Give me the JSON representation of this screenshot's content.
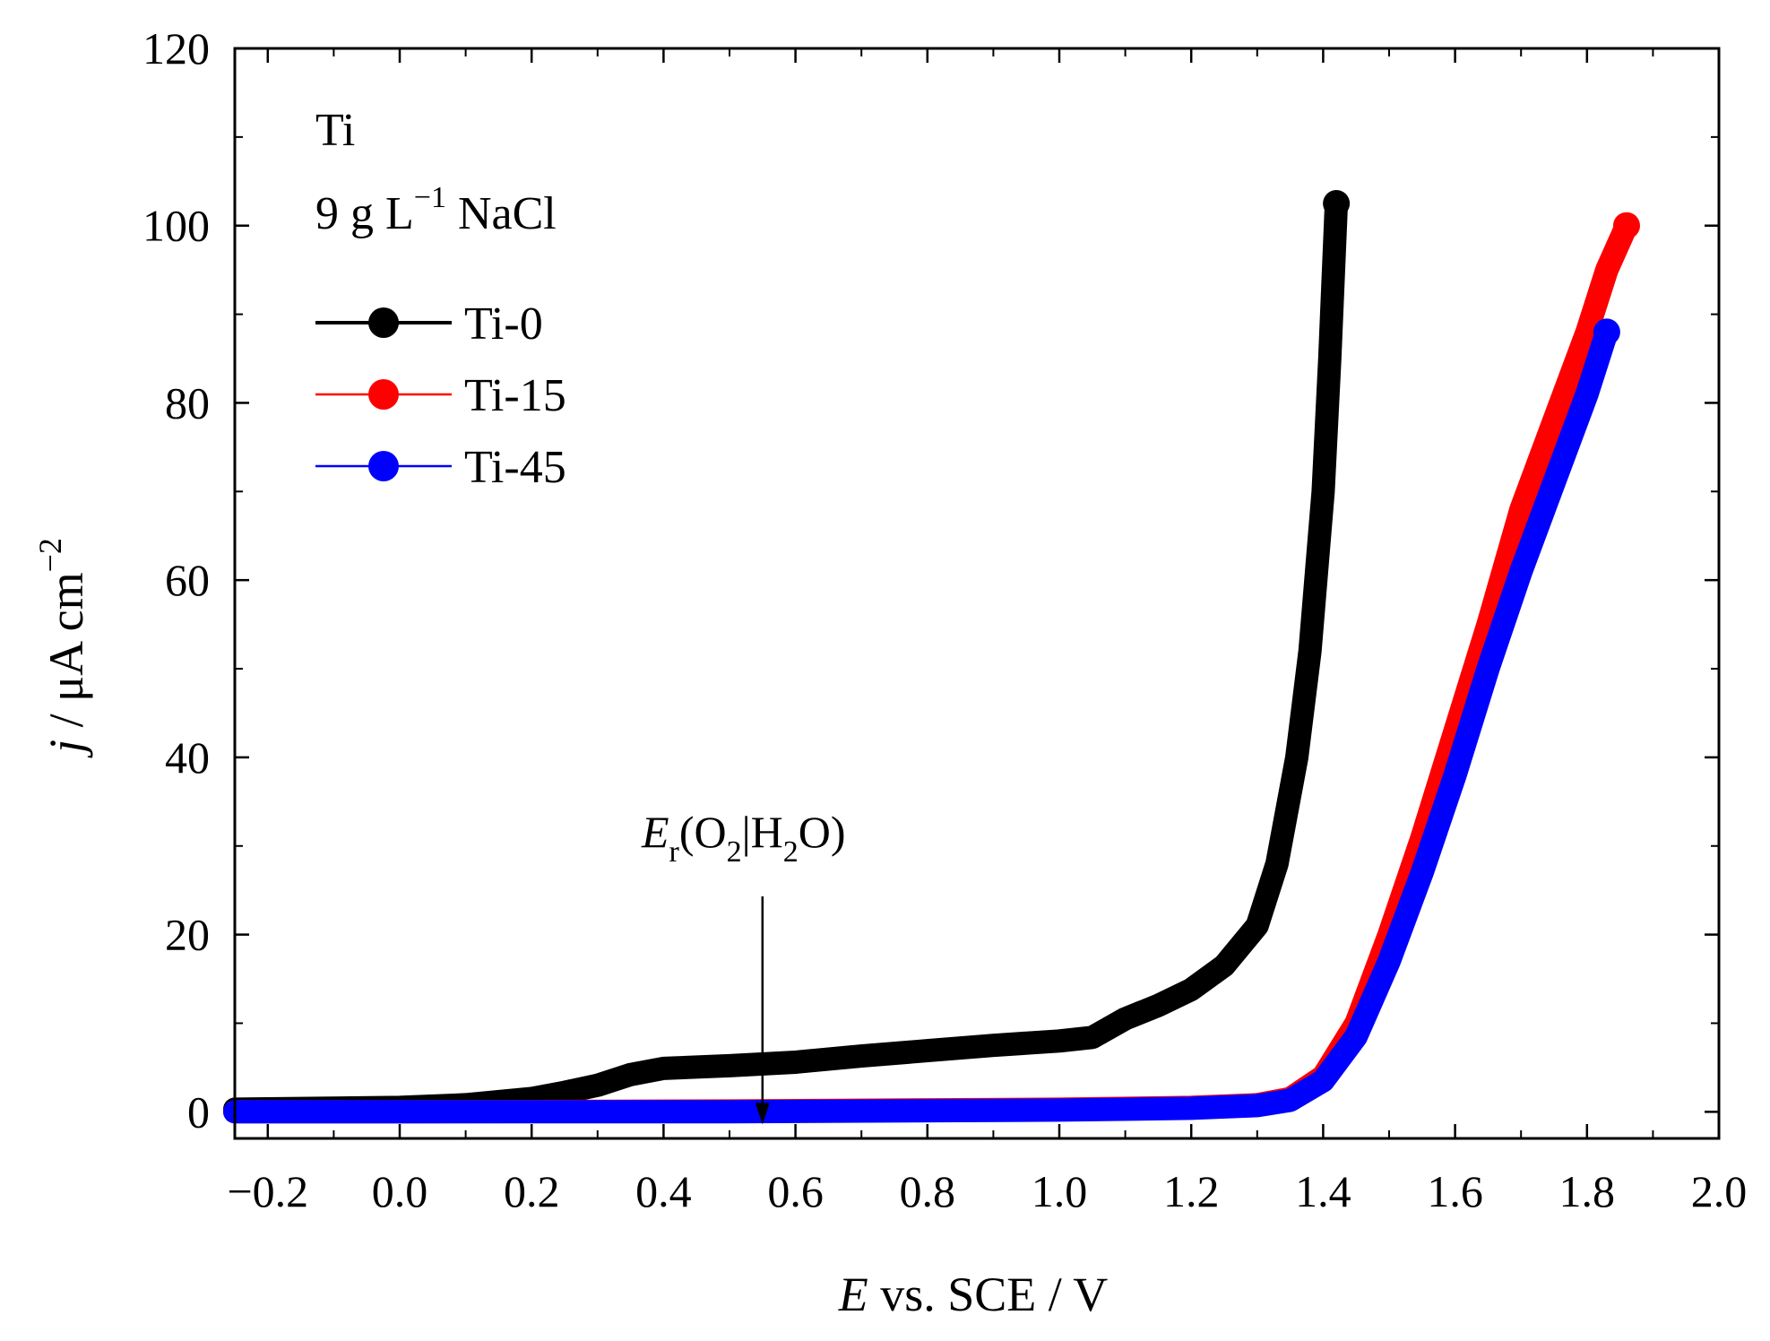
{
  "chart_data": {
    "type": "line",
    "title": "",
    "xlabel": {
      "symbol": "E",
      "rest": " vs. SCE / V"
    },
    "ylabel": {
      "symbol": "j",
      "rest": " / μA cm",
      "sup": "−2"
    },
    "xlim": [
      -0.25,
      2.0
    ],
    "ylim": [
      -3,
      120
    ],
    "xticks": [
      -0.2,
      0.0,
      0.2,
      0.4,
      0.6,
      0.8,
      1.0,
      1.2,
      1.4,
      1.6,
      1.8,
      2.0
    ],
    "xtick_labels": [
      "−0.2",
      "0.0",
      "0.2",
      "0.4",
      "0.6",
      "0.8",
      "1.0",
      "1.2",
      "1.4",
      "1.6",
      "1.8",
      "2.0"
    ],
    "yticks": [
      0,
      20,
      40,
      60,
      80,
      100,
      120
    ],
    "ytick_labels": [
      "0",
      "20",
      "40",
      "60",
      "80",
      "100",
      "120"
    ],
    "grid": false,
    "legend_position": "top-left",
    "text_annotations": {
      "line1": "Ti",
      "line2_pre": "9 g L",
      "line2_sup": "−1",
      "line2_post": " NaCl"
    },
    "arrow_annotation": {
      "E": "E",
      "sub_r": "r",
      "part1": "(O",
      "sub_2": "2",
      "part2": "|H",
      "sub_2b": "2",
      "part3": "O)",
      "x_value": 0.55,
      "y_value": 0
    },
    "series": [
      {
        "name": "Ti-0",
        "color": "#000000",
        "points": [
          [
            -0.25,
            0.3
          ],
          [
            0.0,
            0.5
          ],
          [
            0.1,
            0.8
          ],
          [
            0.2,
            1.5
          ],
          [
            0.25,
            2.2
          ],
          [
            0.3,
            3.0
          ],
          [
            0.35,
            4.2
          ],
          [
            0.4,
            4.9
          ],
          [
            0.5,
            5.2
          ],
          [
            0.6,
            5.6
          ],
          [
            0.7,
            6.3
          ],
          [
            0.8,
            6.9
          ],
          [
            0.9,
            7.5
          ],
          [
            1.0,
            8.0
          ],
          [
            1.05,
            8.4
          ],
          [
            1.1,
            10.5
          ],
          [
            1.15,
            12.0
          ],
          [
            1.2,
            13.8
          ],
          [
            1.25,
            16.5
          ],
          [
            1.3,
            21.0
          ],
          [
            1.33,
            28.0
          ],
          [
            1.36,
            40.0
          ],
          [
            1.38,
            52.0
          ],
          [
            1.4,
            70.0
          ],
          [
            1.41,
            85.0
          ],
          [
            1.42,
            102.5
          ]
        ]
      },
      {
        "name": "Ti-15",
        "color": "#ff0000",
        "points": [
          [
            -0.25,
            0.0
          ],
          [
            0.0,
            0.0
          ],
          [
            0.5,
            0.1
          ],
          [
            1.0,
            0.3
          ],
          [
            1.2,
            0.5
          ],
          [
            1.3,
            0.8
          ],
          [
            1.35,
            1.5
          ],
          [
            1.4,
            4.0
          ],
          [
            1.45,
            10.0
          ],
          [
            1.5,
            20.0
          ],
          [
            1.55,
            31.0
          ],
          [
            1.6,
            43.0
          ],
          [
            1.65,
            55.0
          ],
          [
            1.7,
            68.0
          ],
          [
            1.75,
            78.0
          ],
          [
            1.8,
            88.0
          ],
          [
            1.83,
            95.0
          ],
          [
            1.86,
            100.0
          ]
        ]
      },
      {
        "name": "Ti-45",
        "color": "#0000ff",
        "points": [
          [
            -0.25,
            0.0
          ],
          [
            0.0,
            0.0
          ],
          [
            0.5,
            0.0
          ],
          [
            1.0,
            0.2
          ],
          [
            1.2,
            0.4
          ],
          [
            1.3,
            0.7
          ],
          [
            1.35,
            1.3
          ],
          [
            1.4,
            3.5
          ],
          [
            1.45,
            8.5
          ],
          [
            1.5,
            17.0
          ],
          [
            1.55,
            27.0
          ],
          [
            1.6,
            38.0
          ],
          [
            1.65,
            50.0
          ],
          [
            1.7,
            61.0
          ],
          [
            1.75,
            71.0
          ],
          [
            1.8,
            81.0
          ],
          [
            1.83,
            88.0
          ]
        ]
      }
    ]
  }
}
